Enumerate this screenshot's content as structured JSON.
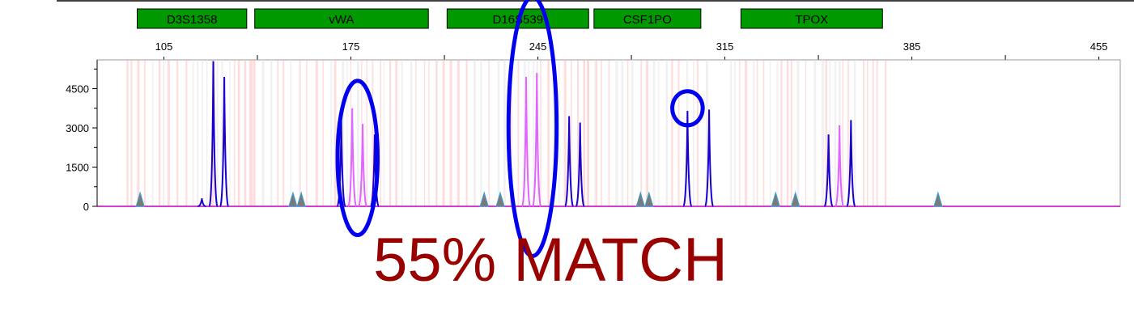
{
  "chart_data": {
    "type": "line",
    "title": "",
    "xlabel": "",
    "ylabel": "",
    "xlim": [
      80,
      463
    ],
    "ylim": [
      0,
      5600
    ],
    "x_ticks": [
      105,
      175,
      245,
      315,
      385,
      455
    ],
    "y_ticks": [
      0,
      1500,
      3000,
      4500
    ],
    "markers": [
      {
        "name": "D3S1358",
        "range": [
          95,
          136
        ],
        "color": "#009900"
      },
      {
        "name": "vWA",
        "range": [
          139,
          204
        ],
        "color": "#009900"
      },
      {
        "name": "D16S539",
        "range": [
          211,
          264
        ],
        "color": "#009900"
      },
      {
        "name": "CSF1PO",
        "range": [
          266,
          306
        ],
        "color": "#009900"
      },
      {
        "name": "TPOX",
        "range": [
          321,
          374
        ],
        "color": "#009900"
      }
    ],
    "series": [
      {
        "color": "#1a00cc",
        "peaks": [
          {
            "x": 123.5,
            "y": 5550
          },
          {
            "x": 127.6,
            "y": 4950
          },
          {
            "x": 119.2,
            "y": 300
          },
          {
            "x": 171.4,
            "y": 3300
          },
          {
            "x": 183.9,
            "y": 2750
          },
          {
            "x": 256.7,
            "y": 3450
          },
          {
            "x": 260.8,
            "y": 3200
          },
          {
            "x": 301.0,
            "y": 3650
          },
          {
            "x": 309.1,
            "y": 3700
          },
          {
            "x": 353.8,
            "y": 2750
          },
          {
            "x": 362.2,
            "y": 3300
          }
        ]
      },
      {
        "color": "#e066ff",
        "peaks": [
          {
            "x": 175.5,
            "y": 3750
          },
          {
            "x": 179.4,
            "y": 3150
          },
          {
            "x": 240.6,
            "y": 4950
          },
          {
            "x": 244.6,
            "y": 5100
          },
          {
            "x": 357.9,
            "y": 3100
          }
        ]
      }
    ],
    "annotations": [
      {
        "shape": "ellipse",
        "cx": 177.5,
        "cy": 1850,
        "rx": 7.5,
        "ry": 2950,
        "color": "#0000ee"
      },
      {
        "shape": "ellipse",
        "cx": 243.0,
        "cy": 3050,
        "rx": 9.0,
        "ry": 4950,
        "color": "#0000ee"
      },
      {
        "shape": "ellipse",
        "cx": 301.0,
        "cy": 3750,
        "rx": 5.7,
        "ry": 650,
        "color": "#0000ee"
      }
    ],
    "size_standard_triangles": [
      96.1,
      153.3,
      156.4,
      224.9,
      230.9,
      283.4,
      286.6,
      334.0,
      341.4,
      394.8
    ]
  },
  "match_label": "55% MATCH"
}
